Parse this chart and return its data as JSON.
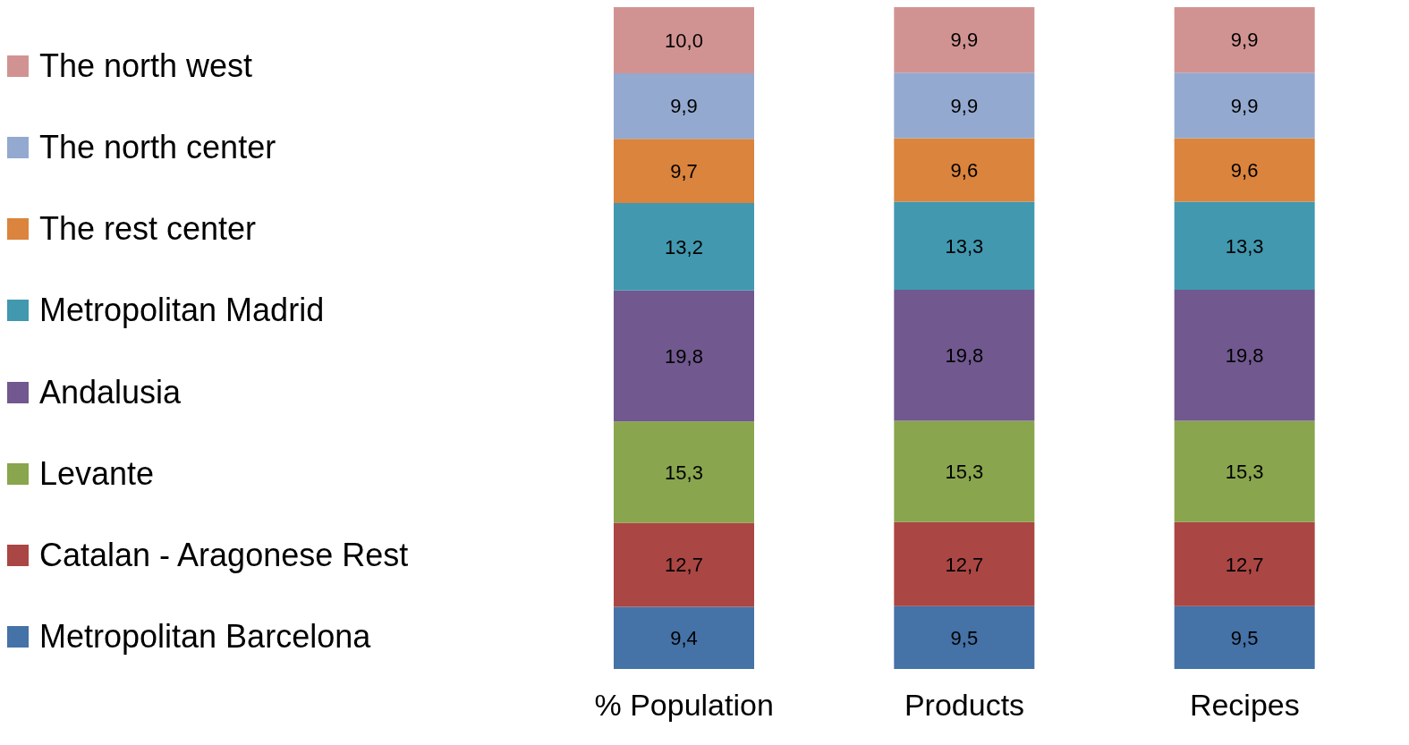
{
  "chart_data": {
    "type": "bar",
    "stacked": true,
    "legend": "left",
    "categories": [
      "% Population",
      "Products",
      "Recipes"
    ],
    "series": [
      {
        "name": "Metropolitan Barcelona",
        "color": "#4572a7",
        "values": [
          9.4,
          9.5,
          9.5
        ],
        "value_labels": [
          "9,4",
          "9,5",
          "9,5"
        ]
      },
      {
        "name": "Catalan - Aragonese Rest",
        "color": "#aa4643",
        "values": [
          12.7,
          12.7,
          12.7
        ],
        "value_labels": [
          "12,7",
          "12,7",
          "12,7"
        ]
      },
      {
        "name": "Levante",
        "color": "#89a54e",
        "values": [
          15.3,
          15.3,
          15.3
        ],
        "value_labels": [
          "15,3",
          "15,3",
          "15,3"
        ]
      },
      {
        "name": "Andalusia",
        "color": "#71588f",
        "values": [
          19.8,
          19.8,
          19.8
        ],
        "value_labels": [
          "19,8",
          "19,8",
          "19,8"
        ]
      },
      {
        "name": "Metropolitan Madrid",
        "color": "#4198af",
        "values": [
          13.2,
          13.3,
          13.3
        ],
        "value_labels": [
          "13,2",
          "13,3",
          "13,3"
        ]
      },
      {
        "name": "The rest center",
        "color": "#db843d",
        "values": [
          9.7,
          9.6,
          9.6
        ],
        "value_labels": [
          "9,7",
          "9,6",
          "9,6"
        ]
      },
      {
        "name": "The north center",
        "color": "#93a9cf",
        "values": [
          9.9,
          9.9,
          9.9
        ],
        "value_labels": [
          "9,9",
          "9,9",
          "9,9"
        ]
      },
      {
        "name": "The north west",
        "color": "#d19392",
        "values": [
          10.0,
          9.9,
          9.9
        ],
        "value_labels": [
          "10,0",
          "9,9",
          "9,9"
        ]
      }
    ]
  }
}
